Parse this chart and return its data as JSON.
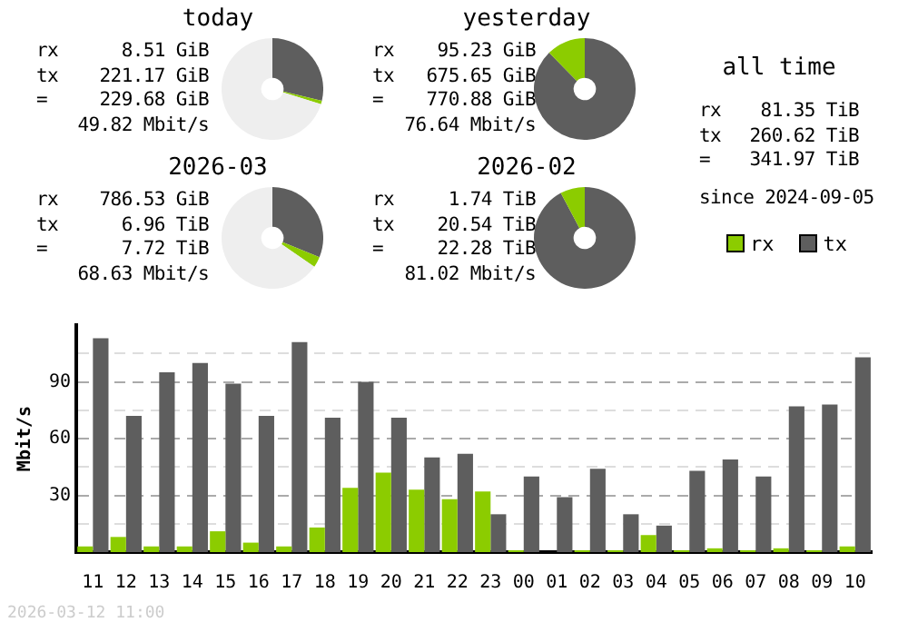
{
  "chart_data": [
    {
      "type": "donut",
      "title": "today",
      "categories": [
        null,
        null,
        null
      ],
      "values": [
        28.7,
        1.1,
        70.2
      ],
      "colors": [
        "#5e5e5e",
        "#8ccc00",
        "#eeeeee"
      ],
      "annotations": [
        "rx 8.51 GiB",
        "tx 221.17 GiB",
        "= 229.68 GiB",
        "49.82 Mbit/s"
      ]
    },
    {
      "type": "donut",
      "title": "yesterday",
      "categories": [
        null,
        null
      ],
      "values": [
        87.65,
        12.35
      ],
      "colors": [
        "#5e5e5e",
        "#8ccc00"
      ],
      "annotations": [
        "rx 95.23 GiB",
        "tx 675.65 GiB",
        "= 770.88 GiB",
        "76.64 Mbit/s"
      ]
    },
    {
      "type": "other",
      "title": "all time",
      "annotations": [
        "rx 81.35 TiB",
        "tx 260.62 TiB",
        "= 341.97 TiB",
        "since 2024-09-05"
      ]
    },
    {
      "type": "donut",
      "title": "2026-03",
      "categories": [
        null,
        null,
        null
      ],
      "values": [
        31.2,
        3.4,
        65.4
      ],
      "colors": [
        "#5e5e5e",
        "#8ccc00",
        "#eeeeee"
      ],
      "annotations": [
        "rx 786.53 GiB",
        "tx 6.96 TiB",
        "= 7.72 TiB",
        "68.63 Mbit/s"
      ]
    },
    {
      "type": "donut",
      "title": "2026-02",
      "categories": [
        null,
        null
      ],
      "values": [
        92.2,
        7.8
      ],
      "colors": [
        "#5e5e5e",
        "#8ccc00"
      ],
      "annotations": [
        "rx 1.74 TiB",
        "tx 20.54 TiB",
        "= 22.28 TiB",
        "81.02 Mbit/s"
      ]
    },
    {
      "type": "bar",
      "ylabel": "Mbit/s",
      "categories": [
        "11",
        "12",
        "13",
        "14",
        "15",
        "16",
        "17",
        "18",
        "19",
        "20",
        "21",
        "22",
        "23",
        "00",
        "01",
        "02",
        "03",
        "04",
        "05",
        "06",
        "07",
        "08",
        "09",
        "10"
      ],
      "series": [
        {
          "name": "rx",
          "color": "#8ccc00",
          "values": [
            3,
            8,
            3,
            3,
            11,
            5,
            3,
            13,
            34,
            42,
            33,
            28,
            32,
            1,
            0,
            1,
            1,
            9,
            1,
            2,
            1,
            2,
            1,
            3
          ]
        },
        {
          "name": "tx",
          "color": "#5e5e5e",
          "values": [
            113,
            72,
            95,
            100,
            89,
            72,
            111,
            71,
            90,
            71,
            50,
            52,
            20,
            40,
            29,
            44,
            20,
            14,
            43,
            49,
            40,
            77,
            78,
            103
          ]
        }
      ],
      "ylim": [
        0,
        120
      ],
      "yticks": [
        {
          "value": 15,
          "label": null
        },
        30,
        {
          "value": 45,
          "label": null
        },
        60,
        {
          "value": 75,
          "label": null
        },
        90,
        {
          "value": 105,
          "label": null
        }
      ],
      "grid": "y",
      "legend": "top right",
      "annotations": [
        "2026-03-12 11:00"
      ]
    }
  ]
}
